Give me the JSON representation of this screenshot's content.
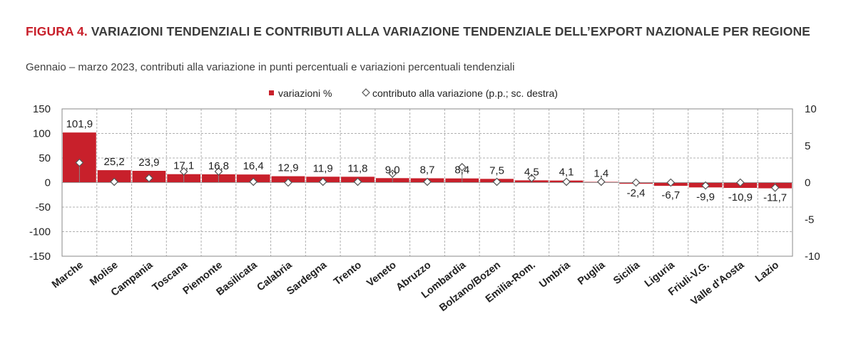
{
  "header": {
    "fig_label": "FIGURA 4.",
    "title": "VARIAZIONI TENDENZIALI E CONTRIBUTI ALLA VARIAZIONE TENDENZIALE DELL’EXPORT NAZIONALE PER REGIONE",
    "subtitle": "Gennaio – marzo 2023, contributi alla variazione in punti percentuali e variazioni percentuali tendenziali"
  },
  "colors": {
    "bar": "#c8202b",
    "marker_stroke": "#555555",
    "grid": "#b0b0b0"
  },
  "chart_data": {
    "type": "bar",
    "categories": [
      "Marche",
      "Molise",
      "Campania",
      "Toscana",
      "Piemonte",
      "Basilicata",
      "Calabria",
      "Sardegna",
      "Trento",
      "Veneto",
      "Abruzzo",
      "Lombardia",
      "Bolzano/Bozen",
      "Emilia-Rom.",
      "Umbria",
      "Puglia",
      "Sicilia",
      "Liguria",
      "Friuli-V.G.",
      "Valle d'Aosta",
      "Lazio"
    ],
    "series": [
      {
        "name": "variazioni %",
        "type": "bar",
        "axis": "left",
        "values": [
          101.9,
          25.2,
          23.9,
          17.1,
          16.8,
          16.4,
          12.9,
          11.9,
          11.8,
          9.0,
          8.7,
          8.4,
          7.5,
          4.5,
          4.1,
          1.4,
          -2.4,
          -6.7,
          -9.9,
          -10.9,
          -11.7
        ],
        "labels": [
          "101,9",
          "25,2",
          "23,9",
          "17,1",
          "16,8",
          "16,4",
          "12,9",
          "11,9",
          "11,8",
          "9,0",
          "8,7",
          "8,4",
          "7,5",
          "4,5",
          "4,1",
          "1,4",
          "-2,4",
          "-6,7",
          "-9,9",
          "-10,9",
          "-11,7"
        ]
      },
      {
        "name": "contributo alla variazione (p.p.; sc. destra)",
        "type": "scatter",
        "axis": "right",
        "values": [
          2.7,
          0.1,
          0.6,
          1.5,
          1.5,
          0.1,
          0.0,
          0.1,
          0.1,
          1.2,
          0.1,
          2.1,
          0.1,
          0.6,
          0.1,
          0.1,
          0.0,
          0.0,
          -0.4,
          0.0,
          -0.7
        ]
      }
    ],
    "y_left": {
      "range": [
        -150,
        150
      ],
      "ticks": [
        150,
        100,
        50,
        0,
        -50,
        -100,
        -150
      ]
    },
    "y_right": {
      "range": [
        -10,
        10
      ],
      "ticks": [
        10,
        5,
        0,
        -5,
        -10
      ]
    },
    "grid": true,
    "legend": "top-center"
  }
}
